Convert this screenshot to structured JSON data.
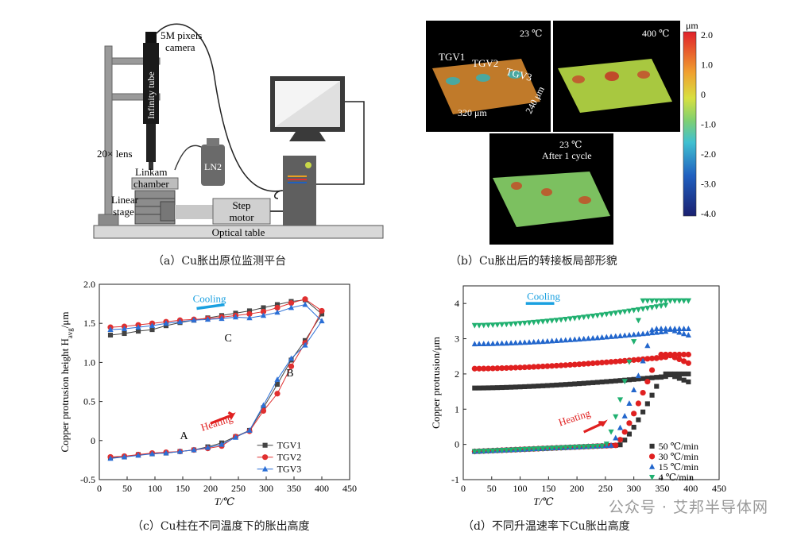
{
  "panel_a": {
    "caption": "（a）Cu胀出原位监测平台",
    "labels": {
      "camera": [
        "5M pixels",
        "camera"
      ],
      "tube": "Infinity tube",
      "lens": "20× lens",
      "ln2": "LN2",
      "chamber": [
        "Linkam",
        "chamber"
      ],
      "stage": [
        "Linear",
        "stage"
      ],
      "motor": [
        "Step",
        "motor"
      ],
      "table": "Optical table"
    }
  },
  "panel_b": {
    "caption": "（b）Cu胀出后的转接板局部形貌",
    "img1": {
      "temp": "23 ℃",
      "tgv": [
        "TGV1",
        "TGV2",
        "TGV3"
      ],
      "dim_x": "320 μm",
      "dim_y": "240 μm"
    },
    "img2": {
      "temp": "400 ℃"
    },
    "img3": {
      "temp": "23 ℃",
      "sub": "After 1 cycle"
    },
    "colorbar": {
      "unit": "μm",
      "ticks": [
        "2.0",
        "1.0",
        "0",
        "-1.0",
        "-2.0",
        "-3.0",
        "-4.0"
      ]
    }
  },
  "panel_c": {
    "caption": "（c）Cu柱在不同温度下的胀出高度",
    "annotations": {
      "cooling": "Cooling",
      "heating": "Heating",
      "A": "A",
      "B": "B",
      "C": "C"
    },
    "colors": {
      "TGV1": "#444444",
      "TGV2": "#e03030",
      "TGV3": "#2b6fd6",
      "cooling": "#1aa0e0",
      "heating": "#e02020"
    },
    "chart_data": {
      "type": "line",
      "xlabel": "T/℃",
      "ylabel": "Copper protrusion height H",
      "ylabel_sub": "avg",
      "ylabel_unit": "/μm",
      "xlim": [
        0,
        450
      ],
      "ylim": [
        -0.5,
        2.0
      ],
      "xticks": [
        "0",
        "50",
        "100",
        "150",
        "200",
        "250",
        "300",
        "350",
        "400",
        "450"
      ],
      "yticks": [
        "-0.5",
        "0",
        "0.5",
        "1.0",
        "1.5",
        "2.0"
      ],
      "legend_position": "bottom-right",
      "series": [
        {
          "name": "TGV1",
          "marker": "square",
          "heating": {
            "x": [
              20,
              45,
              70,
              95,
              120,
              145,
              170,
              195,
              220,
              245,
              270,
              295,
              320,
              345,
              370,
              400
            ],
            "y": [
              -0.22,
              -0.21,
              -0.18,
              -0.17,
              -0.16,
              -0.14,
              -0.12,
              -0.08,
              -0.03,
              0.05,
              0.13,
              0.42,
              0.72,
              1.03,
              1.28,
              1.62
            ]
          },
          "cooling": {
            "x": [
              20,
              45,
              70,
              95,
              120,
              145,
              170,
              195,
              220,
              245,
              270,
              295,
              320,
              345,
              370
            ],
            "y": [
              1.35,
              1.37,
              1.4,
              1.42,
              1.47,
              1.51,
              1.54,
              1.57,
              1.6,
              1.63,
              1.66,
              1.7,
              1.74,
              1.78,
              1.8
            ]
          }
        },
        {
          "name": "TGV2",
          "marker": "circle",
          "heating": {
            "x": [
              20,
              45,
              70,
              95,
              120,
              145,
              170,
              195,
              220,
              245,
              270,
              295,
              320,
              345,
              370,
              400
            ],
            "y": [
              -0.21,
              -0.2,
              -0.18,
              -0.16,
              -0.15,
              -0.14,
              -0.12,
              -0.1,
              -0.07,
              0.05,
              0.12,
              0.38,
              0.6,
              0.95,
              1.25,
              1.66
            ]
          },
          "cooling": {
            "x": [
              20,
              45,
              70,
              95,
              120,
              145,
              170,
              195,
              220,
              245,
              270,
              295,
              320,
              345,
              370
            ],
            "y": [
              1.45,
              1.46,
              1.48,
              1.5,
              1.52,
              1.54,
              1.55,
              1.56,
              1.58,
              1.6,
              1.62,
              1.65,
              1.7,
              1.76,
              1.81
            ]
          }
        },
        {
          "name": "TGV3",
          "marker": "triangle",
          "heating": {
            "x": [
              20,
              45,
              70,
              95,
              120,
              145,
              170,
              195,
              220,
              245,
              270,
              295,
              320,
              345,
              370,
              400
            ],
            "y": [
              -0.23,
              -0.21,
              -0.19,
              -0.17,
              -0.16,
              -0.14,
              -0.12,
              -0.09,
              -0.05,
              0.04,
              0.13,
              0.45,
              0.78,
              1.05,
              1.22,
              1.53
            ]
          },
          "cooling": {
            "x": [
              20,
              45,
              70,
              95,
              120,
              145,
              170,
              195,
              220,
              245,
              270,
              295,
              320,
              345,
              370
            ],
            "y": [
              1.42,
              1.43,
              1.45,
              1.47,
              1.5,
              1.52,
              1.54,
              1.55,
              1.56,
              1.58,
              1.57,
              1.6,
              1.64,
              1.7,
              1.74
            ]
          }
        }
      ]
    }
  },
  "panel_d": {
    "caption": "（d）不同升温速率下Cu胀出高度",
    "annotations": {
      "cooling": "Cooling",
      "heating": "Heating"
    },
    "colors": {
      "50 ℃/min": "#333333",
      "30 ℃/min": "#e02020",
      "15 ℃/min": "#2266cc",
      "4 ℃/min": "#20b070",
      "cooling": "#1aa0e0",
      "heating": "#e02020"
    },
    "chart_data": {
      "type": "scatter",
      "xlabel": "T/℃",
      "ylabel": "Copper protrusion/μm",
      "xlim": [
        0,
        450
      ],
      "ylim": [
        -1,
        4.5
      ],
      "xticks": [
        "0",
        "50",
        "100",
        "150",
        "200",
        "250",
        "300",
        "350",
        "400",
        "450"
      ],
      "yticks": [
        "-1",
        "0",
        "1",
        "2",
        "3",
        "4"
      ],
      "legend_position": "bottom-right",
      "series": [
        {
          "name": "50 ℃/min",
          "marker": "square",
          "t_on": 275,
          "k": 0.016,
          "top": 2.0,
          "cool_start": 1.6,
          "end": 1.75
        },
        {
          "name": "30 ℃/min",
          "marker": "circle",
          "t_on": 268,
          "k": 0.021,
          "top": 2.55,
          "cool_start": 2.15,
          "end": 2.28
        },
        {
          "name": "15 ℃/min",
          "marker": "triangle",
          "t_on": 260,
          "k": 0.028,
          "top": 3.28,
          "cool_start": 2.85,
          "end": 3.08
        },
        {
          "name": "4 ℃/min",
          "marker": "triangle-down",
          "t_on": 250,
          "k": 0.04,
          "top": 4.08,
          "cool_start": 3.38,
          "end": 4.08
        }
      ]
    }
  },
  "watermark": "公众号 · 艾邦半导体网"
}
